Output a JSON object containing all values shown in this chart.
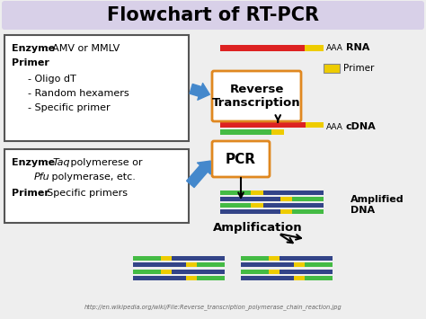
{
  "title": "Flowchart of RT-PCR",
  "title_bg": "#d8d0e8",
  "bg_color": "#eeeeee",
  "rt_box_label": "Reverse\nTranscription",
  "pcr_box_label": "PCR",
  "amp_label": "Amplification",
  "rna_label": "RNA",
  "cdna_label": "cDNA",
  "amp_dna_label": "Amplified\nDNA",
  "primer_legend": "Primer",
  "url_text": "http://en.wikipedia.org/wiki/File:Reverse_transcription_polymerase_chain_reaction.jpg",
  "colors": {
    "red": "#dd2222",
    "green": "#227722",
    "bright_green": "#44bb44",
    "yellow": "#eecc00",
    "blue": "#334488",
    "orange_box": "#e08820",
    "arrow_blue": "#4488cc",
    "teal": "#006644"
  }
}
